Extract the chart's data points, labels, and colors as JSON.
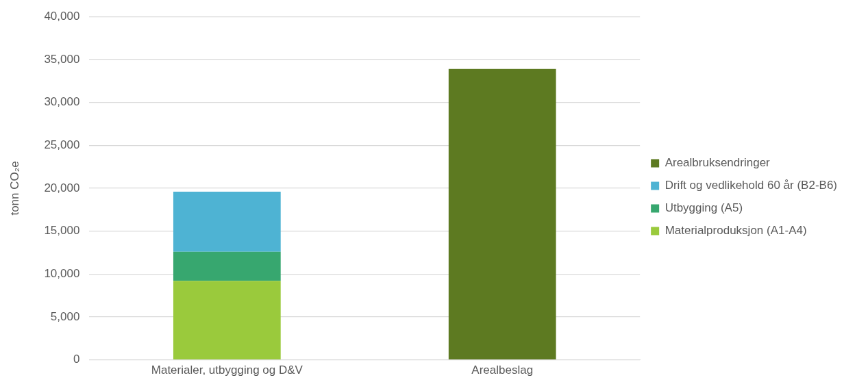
{
  "chart_data": {
    "type": "bar",
    "stacked": true,
    "ylabel": "tonn CO₂e",
    "categories": [
      "Materialer, utbygging og D&V",
      "Arealbeslag"
    ],
    "series": [
      {
        "name": "Materialproduksjon (A1-A4)",
        "color": "#9aca3c",
        "values": [
          9200,
          null
        ]
      },
      {
        "name": "Utbygging (A5)",
        "color": "#37a76f",
        "values": [
          3400,
          null
        ]
      },
      {
        "name": "Drift og vedlikehold 60 år (B2-B6)",
        "color": "#4eb3d3",
        "values": [
          7000,
          null
        ]
      },
      {
        "name": "Arealbruksendringer",
        "color": "#5d7a21",
        "values": [
          null,
          33900
        ]
      }
    ],
    "ylim": [
      0,
      40000
    ],
    "yticks": [
      0,
      {
        "value": 5000,
        "label": "5,000"
      },
      {
        "value": 10000,
        "label": "10,000"
      },
      {
        "value": 15000,
        "label": "15,000"
      },
      {
        "value": 20000,
        "label": "20,000"
      },
      {
        "value": 25000,
        "label": "25,000"
      },
      {
        "value": 30000,
        "label": "30,000"
      },
      {
        "value": 35000,
        "label": "35,000"
      },
      {
        "value": 40000,
        "label": "40,000"
      }
    ],
    "grid": "y",
    "legend": "right"
  }
}
